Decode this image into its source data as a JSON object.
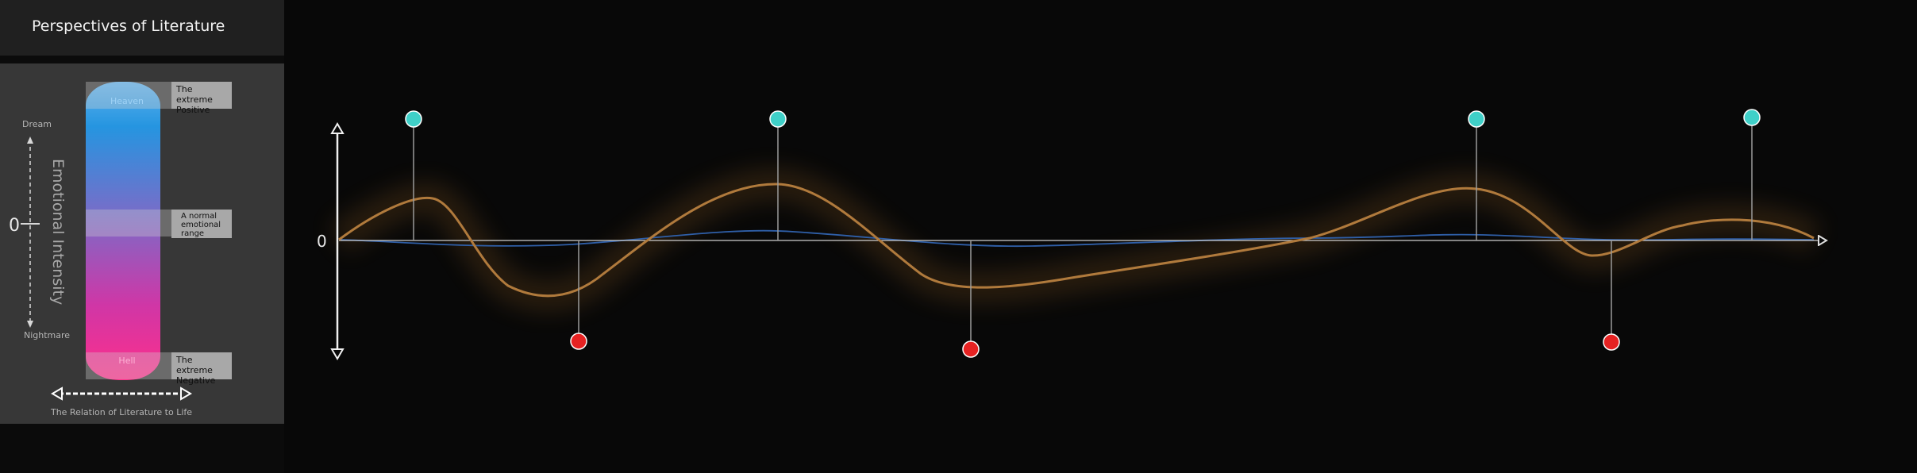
{
  "app": {
    "title": "Perspectives of Literature"
  },
  "legend_panel": {
    "scale_top_label": "Dream",
    "scale_bottom_label": "Nightmare",
    "zero_label": "0",
    "intensity_label": "Emotional Intensity",
    "pill_top_label": "Heaven",
    "pill_bottom_label": "Hell",
    "callout_top": "The extreme Positive",
    "callout_middle": "A normal emotional range",
    "callout_bottom": "The extreme Negative",
    "relation_label": "The Relation of Literature to Life"
  },
  "timeline": {
    "zero_label": "0",
    "colors": {
      "curve": "#b07a3c",
      "baseline_wave": "#2f5fa8",
      "peak_marker": "#3fd0c8",
      "trough_marker": "#e62222"
    }
  }
}
